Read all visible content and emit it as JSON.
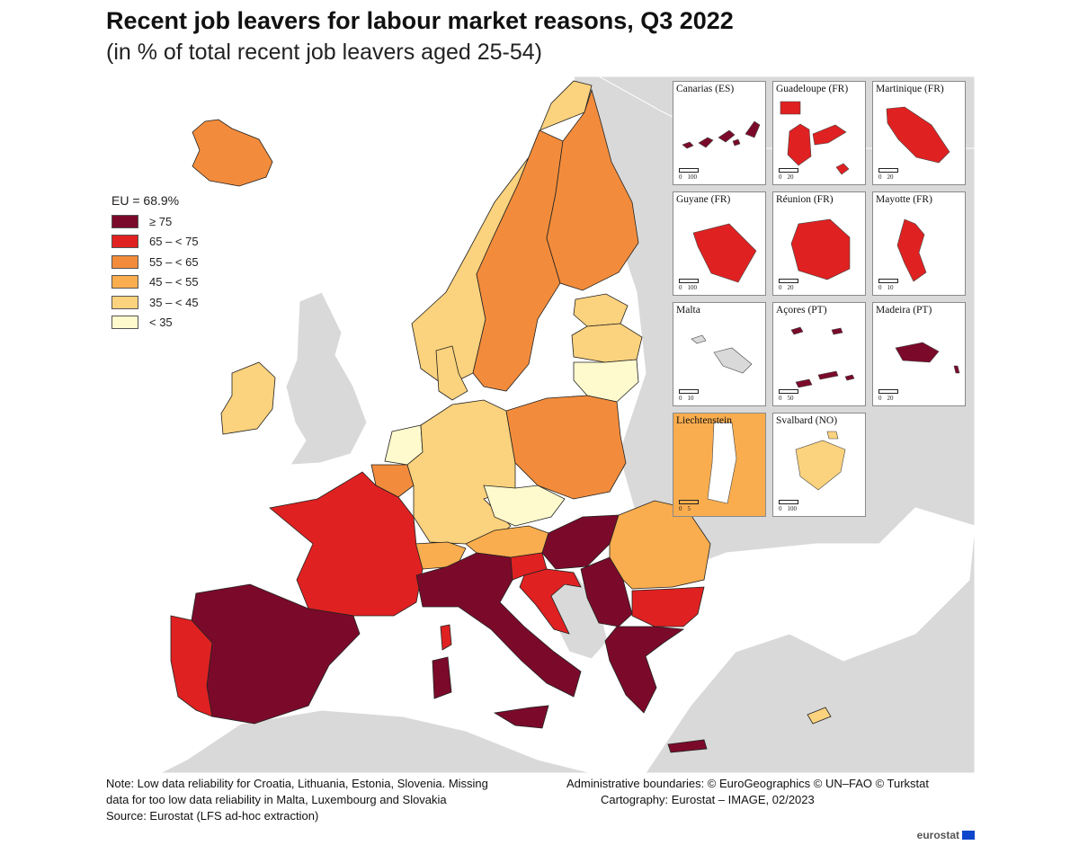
{
  "title": "Recent job leavers for labour market reasons, Q3 2022",
  "subtitle": "(in % of total recent job leavers aged 25-54)",
  "legend": {
    "eu_value": "EU = 68.9%",
    "classes": [
      {
        "label": "≥ 75",
        "color": "#7b0a2a"
      },
      {
        "label": "65 – < 75",
        "color": "#e02121"
      },
      {
        "label": "55 – < 65",
        "color": "#f28c3c"
      },
      {
        "label": "45 – < 55",
        "color": "#f9ad4e"
      },
      {
        "label": "35 – < 45",
        "color": "#fbd27d"
      },
      {
        "label": "< 35",
        "color": "#fefacd"
      }
    ]
  },
  "colors": {
    "sea": "#ffffff",
    "no_data": "#d9d9d9",
    "border": "#222222"
  },
  "countries": {
    "IS": "55 – < 65",
    "IE": "35 – < 45",
    "NO": "35 – < 45",
    "SE": "55 – < 65",
    "FI": "55 – < 65",
    "EE": "35 – < 45",
    "LV": "35 – < 45",
    "LT": "< 35",
    "DK": "35 – < 45",
    "NL": "< 35",
    "BE": "55 – < 65",
    "DE": "35 – < 45",
    "PL": "55 – < 65",
    "CZ": "< 35",
    "AT": "45 – < 55",
    "CH": "45 – < 55",
    "FR": "65 – < 75",
    "ES": "≥ 75",
    "PT": "65 – < 75",
    "IT": "≥ 75",
    "SI": "65 – < 75",
    "HR": "65 – < 75",
    "HU": "≥ 75",
    "RS": "≥ 75",
    "RO": "45 – < 55",
    "BG": "65 – < 75",
    "GR": "≥ 75",
    "CY": "35 – < 45"
  },
  "insets": [
    {
      "label": "Canarias (ES)",
      "scale": [
        "0",
        "100"
      ]
    },
    {
      "label": "Guadeloupe (FR)",
      "scale": [
        "0",
        "20"
      ]
    },
    {
      "label": "Martinique (FR)",
      "scale": [
        "0",
        "20"
      ]
    },
    {
      "label": "Guyane (FR)",
      "scale": [
        "0",
        "100"
      ]
    },
    {
      "label": "Réunion (FR)",
      "scale": [
        "0",
        "20"
      ]
    },
    {
      "label": "Mayotte (FR)",
      "scale": [
        "0",
        "10"
      ]
    },
    {
      "label": "Malta",
      "scale": [
        "0",
        "10"
      ]
    },
    {
      "label": "Açores (PT)",
      "scale": [
        "0",
        "50"
      ]
    },
    {
      "label": "Madeira (PT)",
      "scale": [
        "0",
        "20"
      ]
    },
    {
      "label": "Liechtenstein",
      "scale": [
        "0",
        "5"
      ]
    },
    {
      "label": "Svalbard (NO)",
      "scale": [
        "0",
        "100"
      ]
    }
  ],
  "note": {
    "line1": "Note: Low data reliability for Croatia, Lithuania, Estonia, Slovenia. Missing",
    "line2": "data for too low data reliability in Malta, Luxembourg and Slovakia",
    "line3": "Source: Eurostat (LFS ad-hoc extraction)"
  },
  "credits": {
    "line1": "Administrative boundaries: © EuroGeographics © UN–FAO © Turkstat",
    "line2": "Cartography: Eurostat – IMAGE, 02/2023"
  },
  "logo": "eurostat"
}
